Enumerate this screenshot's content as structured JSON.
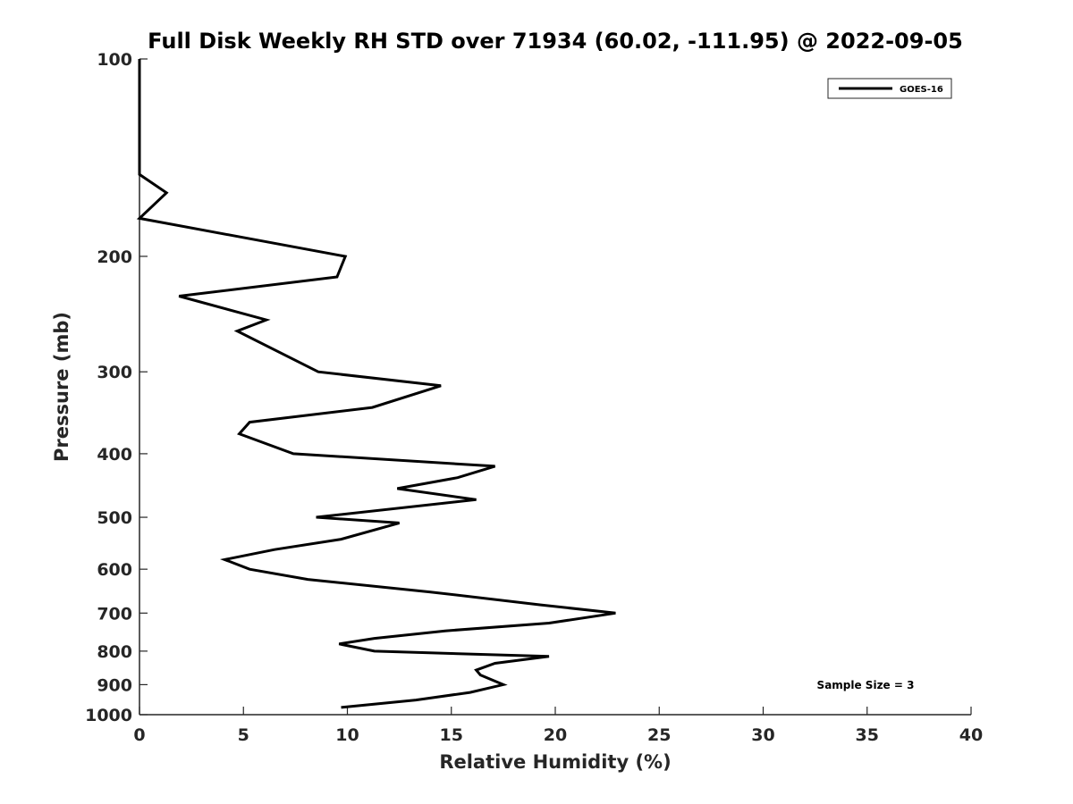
{
  "chart_data": {
    "type": "line",
    "title": "Full Disk Weekly RH STD over 71934 (60.02, -111.95) @ 2022-09-05",
    "xlabel": "Relative Humidity (%)",
    "ylabel": "Pressure (mb)",
    "xlim": [
      0,
      40
    ],
    "ylim": [
      100,
      1000
    ],
    "y_scale": "log",
    "y_reversed": true,
    "x_ticks": [
      "0",
      "5",
      "10",
      "15",
      "20",
      "25",
      "30",
      "35",
      "40"
    ],
    "y_ticks": [
      "100",
      "200",
      "300",
      "400",
      "500",
      "600",
      "700",
      "800",
      "900",
      "1000"
    ],
    "grid": false,
    "legend_position": "top-right",
    "annotation": "Sample Size = 3",
    "series": [
      {
        "name": "GOES-16",
        "color": "#000000",
        "points": [
          [
            0.0,
            100
          ],
          [
            0.0,
            125
          ],
          [
            0.0,
            150
          ],
          [
            1.3,
            160
          ],
          [
            0.0,
            175
          ],
          [
            9.9,
            200
          ],
          [
            9.5,
            215
          ],
          [
            1.9,
            230
          ],
          [
            6.1,
            250
          ],
          [
            4.7,
            260
          ],
          [
            8.6,
            300
          ],
          [
            14.5,
            315
          ],
          [
            11.2,
            340
          ],
          [
            5.3,
            358
          ],
          [
            4.8,
            373
          ],
          [
            7.4,
            400
          ],
          [
            17.1,
            418
          ],
          [
            15.3,
            435
          ],
          [
            12.4,
            452
          ],
          [
            16.2,
            470
          ],
          [
            8.5,
            500
          ],
          [
            12.5,
            510
          ],
          [
            9.7,
            540
          ],
          [
            6.5,
            560
          ],
          [
            4.1,
            580
          ],
          [
            5.3,
            600
          ],
          [
            8.1,
            622
          ],
          [
            14.0,
            650
          ],
          [
            19.3,
            680
          ],
          [
            22.9,
            700
          ],
          [
            19.7,
            725
          ],
          [
            14.7,
            745
          ],
          [
            11.3,
            765
          ],
          [
            9.6,
            780
          ],
          [
            11.3,
            800
          ],
          [
            19.7,
            815
          ],
          [
            17.1,
            835
          ],
          [
            16.2,
            855
          ],
          [
            16.4,
            870
          ],
          [
            17.5,
            900
          ],
          [
            15.9,
            925
          ],
          [
            13.3,
            950
          ],
          [
            9.7,
            975
          ]
        ]
      }
    ]
  }
}
